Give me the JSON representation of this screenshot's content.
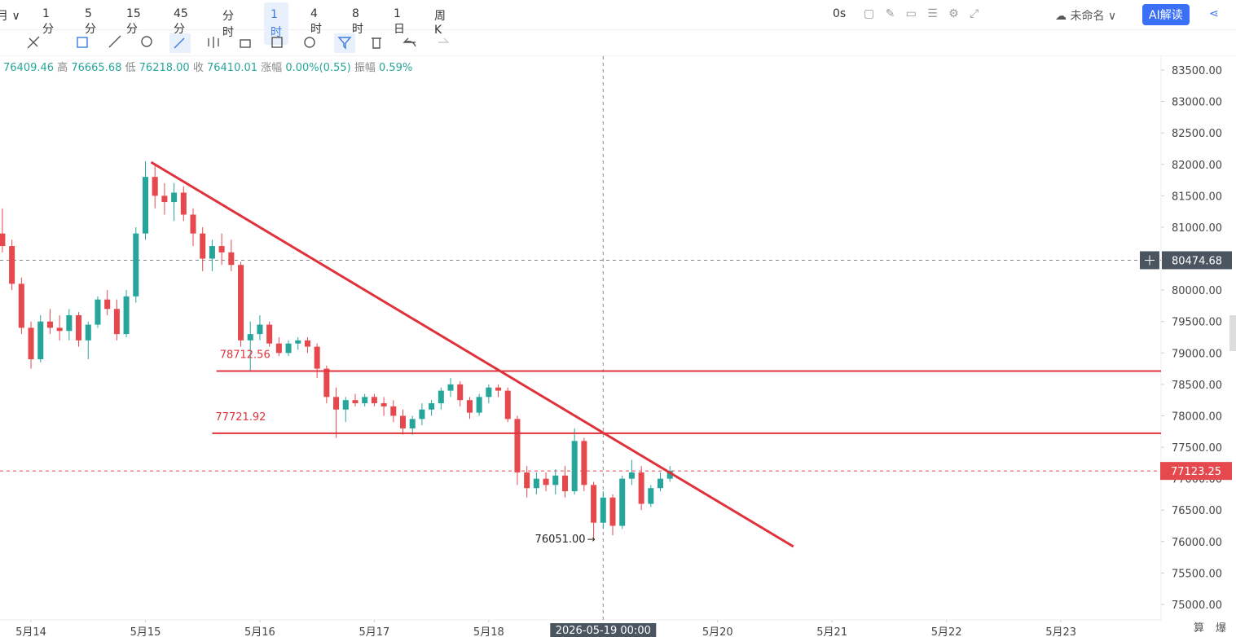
{
  "toolbar": {
    "period_cut": "月",
    "intervals": [
      "1分",
      "5分",
      "15分",
      "45分",
      "分时",
      "1时",
      "4时",
      "8时",
      "1日",
      "周K"
    ],
    "selected": "1时",
    "timer": "0s",
    "layout_name": "未命名",
    "ai_button": "AI解读"
  },
  "ohlc_header": {
    "open": "76409.46",
    "high_label": "高",
    "high": "76665.68",
    "low_label": "低",
    "low": "76218.00",
    "close_label": "收",
    "close": "76410.01",
    "change_label": "涨幅",
    "change": "0.00%(0.55)",
    "amplitude_label": "振幅",
    "amplitude": "0.59%"
  },
  "corner": [
    "算",
    "爆"
  ],
  "chart_data": {
    "type": "candlestick",
    "up_color": "#26a69a",
    "down_color": "#e5484d",
    "xlim": [
      -6.5,
      237
    ],
    "ylim": [
      74754,
      83720
    ],
    "xticks": [
      {
        "value": 0,
        "label": "5月14"
      },
      {
        "value": 24,
        "label": "5月15"
      },
      {
        "value": 48,
        "label": "5月16"
      },
      {
        "value": 72,
        "label": "5月17"
      },
      {
        "value": 96,
        "label": "5月18"
      },
      {
        "value": 144,
        "label": "5月20"
      },
      {
        "value": 168,
        "label": "5月21"
      },
      {
        "value": 192,
        "label": "5月22"
      },
      {
        "value": 216,
        "label": "5月23"
      }
    ],
    "yticks": [
      {
        "value": 75000,
        "label": "75000.00"
      },
      {
        "value": 75500,
        "label": "75500.00"
      },
      {
        "value": 76000,
        "label": "76000.00"
      },
      {
        "value": 76500,
        "label": "76500.00"
      },
      {
        "value": 77000,
        "label": "77000.00"
      },
      {
        "value": 77500,
        "label": "77500.00"
      },
      {
        "value": 78000,
        "label": "78000.00"
      },
      {
        "value": 78500,
        "label": "78500.00"
      },
      {
        "value": 79000,
        "label": "79000.00"
      },
      {
        "value": 79500,
        "label": "79500.00"
      },
      {
        "value": 80000,
        "label": "80000.00"
      },
      {
        "value": 80500,
        "label": "80500.00"
      },
      {
        "value": 81000,
        "label": "81000.00"
      },
      {
        "value": 81500,
        "label": "81500.00"
      },
      {
        "value": 82000,
        "label": "82000.00"
      },
      {
        "value": 82500,
        "label": "82500.00"
      },
      {
        "value": 83000,
        "label": "83000.00"
      },
      {
        "value": 83500,
        "label": "83500.00"
      }
    ],
    "x": [
      -6,
      -4,
      -2,
      0,
      2,
      4,
      6,
      8,
      10,
      12,
      14,
      16,
      18,
      20,
      22,
      24,
      26,
      28,
      30,
      32,
      34,
      36,
      38,
      40,
      42,
      44,
      46,
      48,
      50,
      52,
      54,
      56,
      58,
      60,
      62,
      64,
      66,
      68,
      70,
      72,
      74,
      76,
      78,
      80,
      82,
      84,
      86,
      88,
      90,
      92,
      94,
      96,
      98,
      100,
      102,
      104,
      106,
      108,
      110,
      112,
      114,
      116,
      118,
      120,
      122,
      124,
      126,
      128,
      130,
      132,
      134
    ],
    "ohlc": [
      [
        80900,
        81300,
        80600,
        80700
      ],
      [
        80700,
        80800,
        80000,
        80100
      ],
      [
        80100,
        80200,
        79300,
        79400
      ],
      [
        79400,
        79500,
        78750,
        78900
      ],
      [
        78900,
        79600,
        78850,
        79500
      ],
      [
        79500,
        79700,
        79300,
        79400
      ],
      [
        79400,
        79600,
        79200,
        79350
      ],
      [
        79350,
        79700,
        79200,
        79600
      ],
      [
        79600,
        79650,
        79100,
        79200
      ],
      [
        79200,
        79500,
        78900,
        79450
      ],
      [
        79450,
        79900,
        79400,
        79850
      ],
      [
        79850,
        80000,
        79600,
        79700
      ],
      [
        79700,
        79850,
        79200,
        79300
      ],
      [
        79300,
        80000,
        79250,
        79900
      ],
      [
        79900,
        81000,
        79800,
        80900
      ],
      [
        80900,
        82050,
        80800,
        81800
      ],
      [
        81800,
        82000,
        81300,
        81500
      ],
      [
        81500,
        81700,
        81200,
        81400
      ],
      [
        81400,
        81700,
        81100,
        81550
      ],
      [
        81550,
        81650,
        81100,
        81200
      ],
      [
        81200,
        81300,
        80700,
        80900
      ],
      [
        80900,
        81000,
        80300,
        80500
      ],
      [
        80500,
        80800,
        80300,
        80700
      ],
      [
        80700,
        80900,
        80400,
        80600
      ],
      [
        80600,
        80800,
        80300,
        80400
      ],
      [
        80400,
        80450,
        79100,
        79200
      ],
      [
        79200,
        79500,
        78700,
        79300
      ],
      [
        79300,
        79600,
        79200,
        79450
      ],
      [
        79450,
        79500,
        79100,
        79150
      ],
      [
        79150,
        79250,
        78950,
        79000
      ],
      [
        79000,
        79200,
        78950,
        79150
      ],
      [
        79150,
        79250,
        79050,
        79200
      ],
      [
        79200,
        79250,
        79000,
        79100
      ],
      [
        79100,
        79150,
        78600,
        78750
      ],
      [
        78750,
        78800,
        78200,
        78300
      ],
      [
        78300,
        78450,
        77650,
        78100
      ],
      [
        78100,
        78300,
        77900,
        78250
      ],
      [
        78250,
        78350,
        78150,
        78200
      ],
      [
        78200,
        78350,
        78150,
        78300
      ],
      [
        78300,
        78350,
        78150,
        78200
      ],
      [
        78200,
        78300,
        78000,
        78150
      ],
      [
        78150,
        78250,
        77900,
        78000
      ],
      [
        78000,
        78100,
        77700,
        77800
      ],
      [
        77800,
        78000,
        77700,
        77950
      ],
      [
        77950,
        78200,
        77850,
        78100
      ],
      [
        78100,
        78250,
        78000,
        78200
      ],
      [
        78200,
        78450,
        78100,
        78400
      ],
      [
        78400,
        78600,
        78300,
        78500
      ],
      [
        78500,
        78550,
        78150,
        78250
      ],
      [
        78250,
        78300,
        77950,
        78050
      ],
      [
        78050,
        78350,
        78000,
        78300
      ],
      [
        78300,
        78500,
        78200,
        78450
      ],
      [
        78450,
        78500,
        78300,
        78400
      ],
      [
        78400,
        78450,
        77900,
        77950
      ],
      [
        77950,
        78000,
        76900,
        77100
      ],
      [
        77100,
        77200,
        76700,
        76850
      ],
      [
        76850,
        77100,
        76750,
        77000
      ],
      [
        77000,
        77100,
        76800,
        76900
      ],
      [
        76900,
        77150,
        76750,
        77050
      ],
      [
        77050,
        77200,
        76700,
        76800
      ],
      [
        76800,
        77800,
        76750,
        77600
      ],
      [
        77600,
        77650,
        76800,
        76900
      ],
      [
        76900,
        76950,
        76051,
        76300
      ],
      [
        76300,
        76800,
        76200,
        76700
      ],
      [
        76700,
        76750,
        76100,
        76250
      ],
      [
        76250,
        77050,
        76200,
        77000
      ],
      [
        77000,
        77300,
        76900,
        77100
      ],
      [
        77100,
        77200,
        76500,
        76600
      ],
      [
        76600,
        76900,
        76550,
        76850
      ],
      [
        76850,
        77100,
        76800,
        77000
      ],
      [
        77000,
        77200,
        76950,
        77123.25
      ]
    ],
    "trendline": {
      "color": "#e0323c",
      "x": [
        25.2,
        159.9
      ],
      "values": [
        82034,
        75920
      ]
    },
    "hlines": [
      {
        "value": 78712.56,
        "x_start": 38.9,
        "color": "#e0323c"
      },
      {
        "value": 77721.92,
        "x_start": 38,
        "color": "#e0323c"
      }
    ],
    "crosshair": {
      "x": 120,
      "x_label": "2026-05-19 00:00",
      "y": 80474.68
    },
    "last_price": {
      "value": 77123.25,
      "color": "#e5484d"
    },
    "annotation": {
      "x": 118,
      "value": 76051,
      "label": "76051.00"
    }
  }
}
